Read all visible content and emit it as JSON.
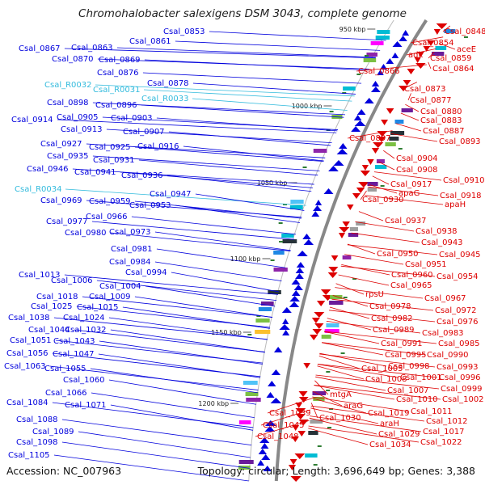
{
  "title": "Chromohalobacter salexigens DSM 3043, complete genome",
  "accession_label": "Accession: NC_007963",
  "summary_label": "Topology: circular; Length: 3,696,649 bp; Genes: 3,388",
  "colors": {
    "forward": "#0000dd",
    "reverse": "#dd0000",
    "rna": "#33bbdd",
    "backbone": "#888888"
  },
  "scale_ticks": [
    {
      "label": "950 kbp"
    },
    {
      "label": "1000 kbp"
    },
    {
      "label": "1050 kbp"
    },
    {
      "label": "1100 kbp"
    },
    {
      "label": "1150 kbp"
    },
    {
      "label": "1200 kbp"
    }
  ],
  "left_labels": [
    {
      "text": "Csal_0853",
      "type": "cds"
    },
    {
      "text": "Csal_0861",
      "type": "cds"
    },
    {
      "text": "Csal_0867",
      "type": "cds"
    },
    {
      "text": "Csal_0863",
      "type": "cds"
    },
    {
      "text": "Csal_0870",
      "type": "cds"
    },
    {
      "text": "Csal_0869",
      "type": "cds"
    },
    {
      "text": "Csal_0876",
      "type": "cds"
    },
    {
      "text": "Csal_0878",
      "type": "cds"
    },
    {
      "text": "Csal_R0032",
      "type": "rna"
    },
    {
      "text": "Csal_R0031",
      "type": "rna"
    },
    {
      "text": "Csal_R0033",
      "type": "rna"
    },
    {
      "text": "Csal_0898",
      "type": "cds"
    },
    {
      "text": "Csal_0896",
      "type": "cds"
    },
    {
      "text": "Csal_0905",
      "type": "cds"
    },
    {
      "text": "Csal_0903",
      "type": "cds"
    },
    {
      "text": "Csal_0914",
      "type": "cds"
    },
    {
      "text": "Csal_0913",
      "type": "cds"
    },
    {
      "text": "Csal_0907",
      "type": "cds"
    },
    {
      "text": "Csal_0927",
      "type": "cds"
    },
    {
      "text": "Csal_0925",
      "type": "cds"
    },
    {
      "text": "Csal_0916",
      "type": "cds"
    },
    {
      "text": "Csal_0935",
      "type": "cds"
    },
    {
      "text": "Csal_0931",
      "type": "cds"
    },
    {
      "text": "Csal_0946",
      "type": "cds"
    },
    {
      "text": "Csal_0941",
      "type": "cds"
    },
    {
      "text": "Csal_0936",
      "type": "cds"
    },
    {
      "text": "Csal_R0034",
      "type": "rna"
    },
    {
      "text": "Csal_0947",
      "type": "cds"
    },
    {
      "text": "Csal_0969",
      "type": "cds"
    },
    {
      "text": "Csal_0959",
      "type": "cds"
    },
    {
      "text": "Csal_0953",
      "type": "cds"
    },
    {
      "text": "Csal_0966",
      "type": "cds"
    },
    {
      "text": "Csal_0977",
      "type": "cds"
    },
    {
      "text": "Csal_0980",
      "type": "cds"
    },
    {
      "text": "Csal_0973",
      "type": "cds"
    },
    {
      "text": "Csal_0981",
      "type": "cds"
    },
    {
      "text": "Csal_0984",
      "type": "cds"
    },
    {
      "text": "Csal_0994",
      "type": "cds"
    },
    {
      "text": "Csal_1013",
      "type": "cds"
    },
    {
      "text": "Csal_1006",
      "type": "cds"
    },
    {
      "text": "Csal_1004",
      "type": "cds"
    },
    {
      "text": "Csal_1018",
      "type": "cds"
    },
    {
      "text": "Csal_1009",
      "type": "cds"
    },
    {
      "text": "Csal_1025",
      "type": "cds"
    },
    {
      "text": "Csal_1015",
      "type": "cds"
    },
    {
      "text": "Csal_1038",
      "type": "cds"
    },
    {
      "text": "Csal_1024",
      "type": "cds"
    },
    {
      "text": "Csal_1044",
      "type": "cds"
    },
    {
      "text": "Csal_1032",
      "type": "cds"
    },
    {
      "text": "Csal_1051",
      "type": "cds"
    },
    {
      "text": "Csal_1043",
      "type": "cds"
    },
    {
      "text": "Csal_1056",
      "type": "cds"
    },
    {
      "text": "Csal_1047",
      "type": "cds"
    },
    {
      "text": "Csal_1063",
      "type": "cds"
    },
    {
      "text": "Csal_1055",
      "type": "cds"
    },
    {
      "text": "Csal_1060",
      "type": "cds"
    },
    {
      "text": "Csal_1066",
      "type": "cds"
    },
    {
      "text": "Csal_1084",
      "type": "cds"
    },
    {
      "text": "Csal_1071",
      "type": "cds"
    },
    {
      "text": "Csal_1088",
      "type": "cds"
    },
    {
      "text": "Csal_1089",
      "type": "cds"
    },
    {
      "text": "Csal_1098",
      "type": "cds"
    },
    {
      "text": "Csal_1105",
      "type": "cds"
    }
  ],
  "right_labels": [
    {
      "text": "Csal_0848"
    },
    {
      "text": "Csal_0854"
    },
    {
      "text": "aceE"
    },
    {
      "text": "adk"
    },
    {
      "text": "Csal_0859"
    },
    {
      "text": "Csal_0866"
    },
    {
      "text": "Csal_0864"
    },
    {
      "text": "Csal_0873"
    },
    {
      "text": "Csal_0877"
    },
    {
      "text": "Csal_0880"
    },
    {
      "text": "Csal_0883"
    },
    {
      "text": "Csal_0887"
    },
    {
      "text": "Csal_0897"
    },
    {
      "text": "Csal_0893"
    },
    {
      "text": "Csal_0904"
    },
    {
      "text": "Csal_0908"
    },
    {
      "text": "Csal_0917"
    },
    {
      "text": "Csal_0910"
    },
    {
      "text": "apaG"
    },
    {
      "text": "Csal_0918"
    },
    {
      "text": "Csal_0930"
    },
    {
      "text": "apaH"
    },
    {
      "text": "Csal_0937"
    },
    {
      "text": "Csal_0938"
    },
    {
      "text": "Csal_0943"
    },
    {
      "text": "Csal_0950"
    },
    {
      "text": "Csal_0945"
    },
    {
      "text": "Csal_0951"
    },
    {
      "text": "Csal_0960"
    },
    {
      "text": "Csal_0954"
    },
    {
      "text": "Csal_0965"
    },
    {
      "text": "rpsU"
    },
    {
      "text": "Csal_0967"
    },
    {
      "text": "Csal_0978"
    },
    {
      "text": "Csal_0972"
    },
    {
      "text": "Csal_0982"
    },
    {
      "text": "Csal_0976"
    },
    {
      "text": "Csal_0989"
    },
    {
      "text": "Csal_0983"
    },
    {
      "text": "Csal_0991"
    },
    {
      "text": "Csal_0985"
    },
    {
      "text": "Csal_0995"
    },
    {
      "text": "Csal_0990"
    },
    {
      "text": "Csal_1005"
    },
    {
      "text": "Csal_0998"
    },
    {
      "text": "Csal_0993"
    },
    {
      "text": "Csal_1008"
    },
    {
      "text": "Csal_1001"
    },
    {
      "text": "Csal_0996"
    },
    {
      "text": "Csal_1007"
    },
    {
      "text": "Csal_0999"
    },
    {
      "text": "mtgA"
    },
    {
      "text": "Csal_1010"
    },
    {
      "text": "Csal_1002"
    },
    {
      "text": "araG"
    },
    {
      "text": "Csal_1011"
    },
    {
      "text": "Csal_1039"
    },
    {
      "text": "Csal_1019"
    },
    {
      "text": "Csal_1030"
    },
    {
      "text": "Csal_1012"
    },
    {
      "text": "Csal_1045"
    },
    {
      "text": "araH"
    },
    {
      "text": "Csal_1017"
    },
    {
      "text": "Csal_1048"
    },
    {
      "text": "Csal_1029"
    },
    {
      "text": "Csal_1022"
    },
    {
      "text": "Csal_1034"
    }
  ]
}
